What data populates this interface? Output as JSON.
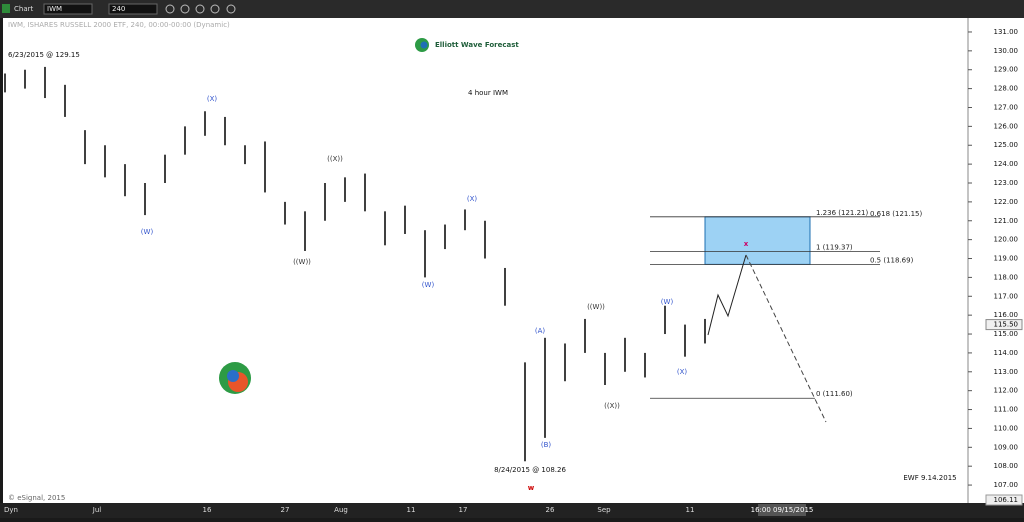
{
  "chart_data": {
    "type": "ohlc",
    "toolbar": {
      "chart": "Chart",
      "symbol": "IWM",
      "interval": "240"
    },
    "subtitle": "IWM, ISHARES RUSSELL 2000 ETF, 240, 00:00-00:00 (Dynamic)",
    "brand": "Elliott Wave Forecast",
    "title": "4 hour IWM",
    "footer": "EWF 9.14.2015",
    "copyright": "© eSignal, 2015",
    "mode": "Dyn",
    "cursor_time": "16:00 09/15/2015",
    "last_price": {
      "value": 115.5,
      "label": "115.50"
    },
    "bottom_value": "106.11",
    "high_note": "6/23/2015 @ 129.15",
    "low_note": "8/24/2015 @ 108.26",
    "waves": [
      "(W)",
      "(X)",
      "((W))",
      "((X))",
      "(W)",
      "(X)",
      "(A)",
      "(B)",
      "((W))",
      "((X))",
      "(W)",
      "(X)",
      "w",
      "x"
    ],
    "date_labels": [
      "Jul",
      "16",
      "27",
      "Aug",
      "11",
      "17",
      "26",
      "Sep",
      "11"
    ],
    "highs": [
      128.8,
      129.0,
      129.15,
      128.2,
      125.8,
      125.0,
      124.0,
      123.0,
      124.5,
      126.0,
      126.8,
      126.5,
      125.0,
      125.2,
      122.0,
      121.5,
      123.0,
      123.3,
      123.5,
      121.5,
      121.8,
      120.5,
      120.8,
      121.6,
      121.0,
      118.5,
      113.5,
      114.8,
      114.5,
      115.8,
      114.0,
      114.8,
      114.0,
      116.5,
      115.5,
      115.8
    ],
    "lows": [
      127.8,
      128.0,
      127.5,
      126.5,
      124.0,
      123.3,
      122.3,
      121.3,
      123.0,
      124.5,
      125.5,
      125.0,
      124.0,
      122.5,
      120.8,
      119.4,
      121.0,
      122.0,
      121.5,
      119.7,
      120.3,
      118.0,
      119.5,
      120.5,
      119.0,
      116.5,
      108.26,
      109.5,
      112.5,
      114.0,
      112.3,
      113.0,
      112.7,
      115.0,
      113.8,
      114.5
    ],
    "fib_levels": [
      {
        "value": 121.21,
        "label": "1.236 (121.21)"
      },
      {
        "value": 121.15,
        "label": "0.618 (121.15)"
      },
      {
        "value": 119.37,
        "label": "1 (119.37)"
      },
      {
        "value": 118.69,
        "label": "0.5 (118.69)"
      },
      {
        "value": 111.6,
        "label": "0 (111.60)"
      }
    ],
    "ylim": [
      106.05,
      131.74
    ],
    "yticks": [
      {
        "value": 131,
        "label": "131.00"
      },
      {
        "value": 130,
        "label": "130.00"
      },
      {
        "value": 129,
        "label": "129.00"
      },
      {
        "value": 128,
        "label": "128.00"
      },
      {
        "value": 127,
        "label": "127.00"
      },
      {
        "value": 126,
        "label": "126.00"
      },
      {
        "value": 125,
        "label": "125.00"
      },
      {
        "value": 124,
        "label": "124.00"
      },
      {
        "value": 123,
        "label": "123.00"
      },
      {
        "value": 122,
        "label": "122.00"
      },
      {
        "value": 121,
        "label": "121.00"
      },
      {
        "value": 120,
        "label": "120.00"
      },
      {
        "value": 119,
        "label": "119.00"
      },
      {
        "value": 118,
        "label": "118.00"
      },
      {
        "value": 117,
        "label": "117.00"
      },
      {
        "value": 116,
        "label": "116.00"
      },
      {
        "value": 115,
        "label": "115.00"
      },
      {
        "value": 114,
        "label": "114.00"
      },
      {
        "value": 113,
        "label": "113.00"
      },
      {
        "value": 112,
        "label": "112.00"
      },
      {
        "value": 111,
        "label": "111.00"
      },
      {
        "value": 110,
        "label": "110.00"
      },
      {
        "value": 109,
        "label": "109.00"
      },
      {
        "value": 108,
        "label": "108.00"
      },
      {
        "value": 107,
        "label": "107.00"
      }
    ]
  }
}
